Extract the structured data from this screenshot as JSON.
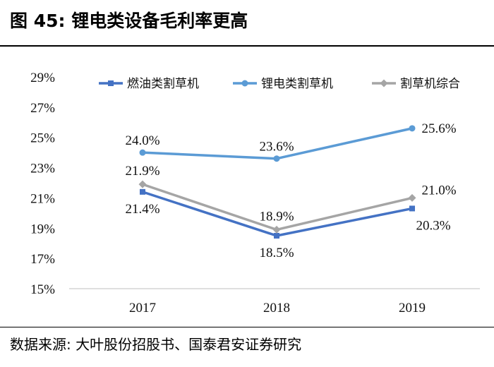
{
  "header": {
    "title": "图 45: 锂电类设备毛利率更高"
  },
  "footer": {
    "source": "数据来源: 大叶股份招股书、国泰君安证券研究"
  },
  "chart_data": {
    "type": "line",
    "categories": [
      "2017",
      "2018",
      "2019"
    ],
    "ylim": [
      15,
      29
    ],
    "yticks": [
      15,
      17,
      19,
      21,
      23,
      25,
      27,
      29
    ],
    "ytick_suffix": "%",
    "grid": false,
    "legend_position": "top",
    "series": [
      {
        "name": "燃油类割草机",
        "values": [
          21.4,
          18.5,
          20.3
        ],
        "labels": [
          "21.4%",
          "18.5%",
          "20.3%"
        ],
        "color": "#4472C4",
        "marker": "square"
      },
      {
        "name": "锂电类割草机",
        "values": [
          24.0,
          23.6,
          25.6
        ],
        "labels": [
          "24.0%",
          "23.6%",
          "25.6%"
        ],
        "color": "#5B9BD5",
        "marker": "circle"
      },
      {
        "name": "割草机综合",
        "values": [
          21.9,
          18.9,
          21.0
        ],
        "labels": [
          "21.9%",
          "18.9%",
          "21.0%"
        ],
        "color": "#A5A5A5",
        "marker": "diamond"
      }
    ]
  }
}
